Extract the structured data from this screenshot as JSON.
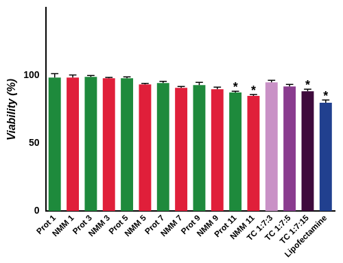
{
  "chart_data": {
    "type": "bar",
    "y_label": "Viability (%)",
    "categories": [
      "Prot 1",
      "NMM 1",
      "Prot 3",
      "NMM 3",
      "Prot 5",
      "NMM 5",
      "Prot 7",
      "NMM 7",
      "Prot 9",
      "NMM 9",
      "Prot 11",
      "NMM 11",
      "TC 1:7:3",
      "TC 1:7:5",
      "TC 1:7:15",
      "Lipofectamine"
    ],
    "values": [
      98.5,
      98.5,
      99,
      98,
      98,
      93.5,
      94.5,
      91,
      93,
      90,
      87.5,
      85,
      95,
      92,
      88.5,
      80
    ],
    "errors": [
      3,
      2,
      1,
      0.7,
      1,
      0.7,
      1.3,
      1,
      2,
      1.5,
      1,
      1,
      1.5,
      1.5,
      1.5,
      2
    ],
    "colors": [
      "#1e8a3c",
      "#e01f3a",
      "#1e8a3c",
      "#e01f3a",
      "#1e8a3c",
      "#e01f3a",
      "#1e8a3c",
      "#e01f3a",
      "#1e8a3c",
      "#e01f3a",
      "#1e8a3c",
      "#e01f3a",
      "#c991c6",
      "#8a3c8f",
      "#3e0a3c",
      "#21408f"
    ],
    "annotations": [
      {
        "category": "Prot 11",
        "text": "*"
      },
      {
        "category": "NMM 11",
        "text": "*"
      },
      {
        "category": "TC 1:7:15",
        "text": "*"
      },
      {
        "category": "Lipofectamine",
        "text": "*"
      }
    ],
    "ylim": [
      0,
      150
    ],
    "yticks": [
      0,
      50,
      100
    ],
    "grid": false
  }
}
